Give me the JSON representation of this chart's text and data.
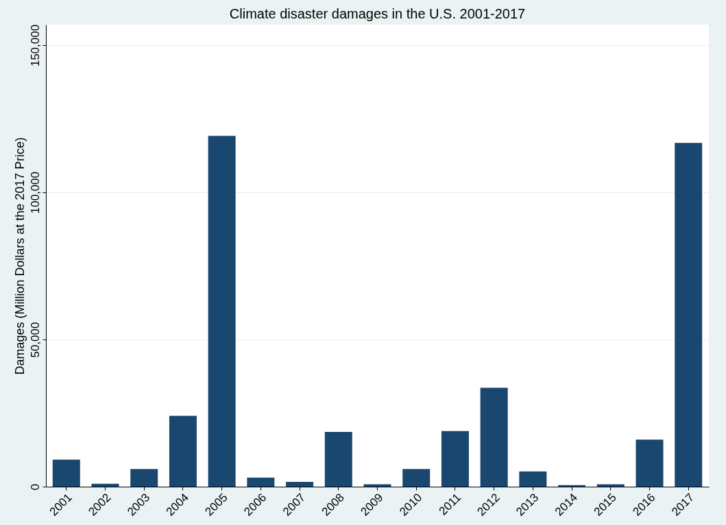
{
  "chart_data": {
    "type": "bar",
    "title": "Climate disaster damages in the U.S. 2001-2017",
    "xlabel": null,
    "ylabel": "Damages (Million Dollars at the 2017 Price)",
    "categories": [
      "2001",
      "2002",
      "2003",
      "2004",
      "2005",
      "2006",
      "2007",
      "2008",
      "2009",
      "2010",
      "2011",
      "2012",
      "2013",
      "2014",
      "2015",
      "2016",
      "2017"
    ],
    "values": [
      9200,
      1000,
      6000,
      24100,
      119200,
      3100,
      1600,
      18600,
      800,
      6000,
      18900,
      33600,
      5200,
      500,
      800,
      16000,
      116800
    ],
    "color": "#1a476f",
    "ylim": [
      0,
      157000
    ],
    "yticks": [
      {
        "value": 0,
        "label": "0"
      },
      {
        "value": 50000,
        "label": "50,000"
      },
      {
        "value": 100000,
        "label": "100,000"
      },
      {
        "value": 150000,
        "label": "150,000"
      }
    ],
    "grid": "y"
  }
}
